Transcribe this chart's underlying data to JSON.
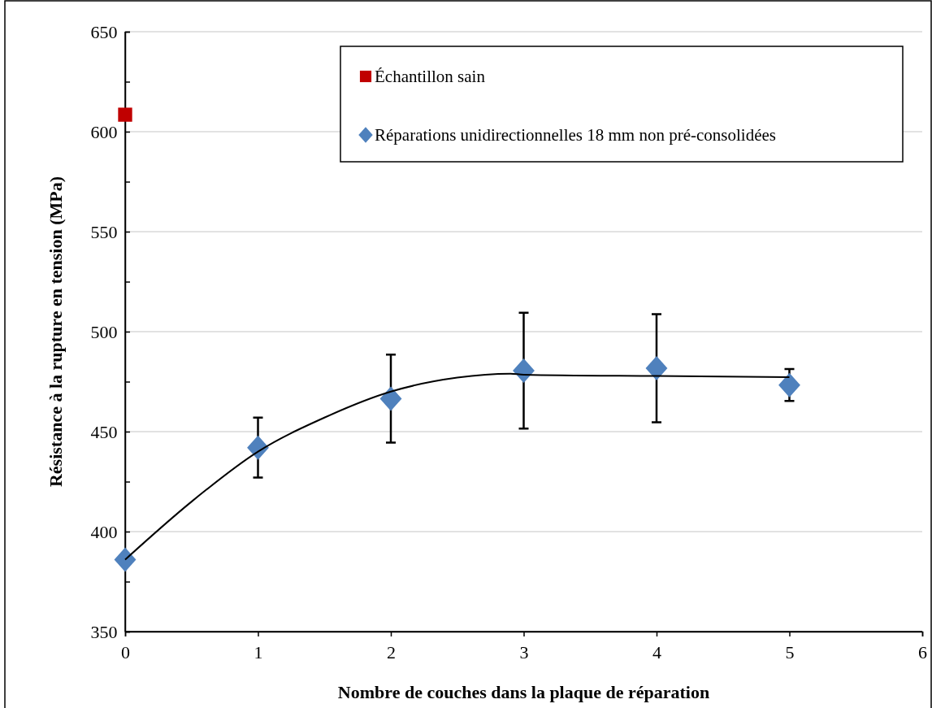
{
  "chart_data": {
    "type": "scatter",
    "xlabel": "Nombre de couches dans la plaque de réparation",
    "ylabel": "Résistance à la rupture en tension (MPa)",
    "xlim": [
      0,
      6
    ],
    "xticks": [
      0,
      1,
      2,
      3,
      4,
      5,
      6
    ],
    "ylim": [
      350,
      650
    ],
    "yticks": [
      350,
      {
        "value": 375,
        "label": null
      },
      400,
      {
        "value": 425,
        "label": null
      },
      450,
      {
        "value": 475,
        "label": null
      },
      500,
      {
        "value": 525,
        "label": null
      },
      550,
      {
        "value": 575,
        "label": null
      },
      600,
      {
        "value": 625,
        "label": null
      },
      650
    ],
    "grid": "y",
    "legend": "top right",
    "series": [
      {
        "name": "Échantillon sain",
        "marker": "square",
        "color": "#c00000",
        "x": [
          0
        ],
        "values": [
          608.5
        ]
      },
      {
        "name": "Réparations unidirectionnelles 18 mm non pré-consolidées",
        "marker": "diamond",
        "color": "#4f81bd",
        "x": [
          0,
          1,
          2,
          3,
          4,
          5
        ],
        "values": [
          386,
          442,
          466.5,
          480.5,
          481.7,
          473.3
        ],
        "errors": [
          null,
          15,
          22,
          29,
          27,
          8
        ]
      },
      {
        "type": "line",
        "color": "#000000",
        "marker": "none",
        "x": [
          0,
          0.5,
          1,
          1.5,
          2,
          2.5,
          2.9,
          3,
          4,
          5
        ],
        "values": [
          386,
          415,
          440,
          457,
          470,
          477,
          479,
          478.5,
          477.8,
          477.2
        ]
      }
    ]
  }
}
